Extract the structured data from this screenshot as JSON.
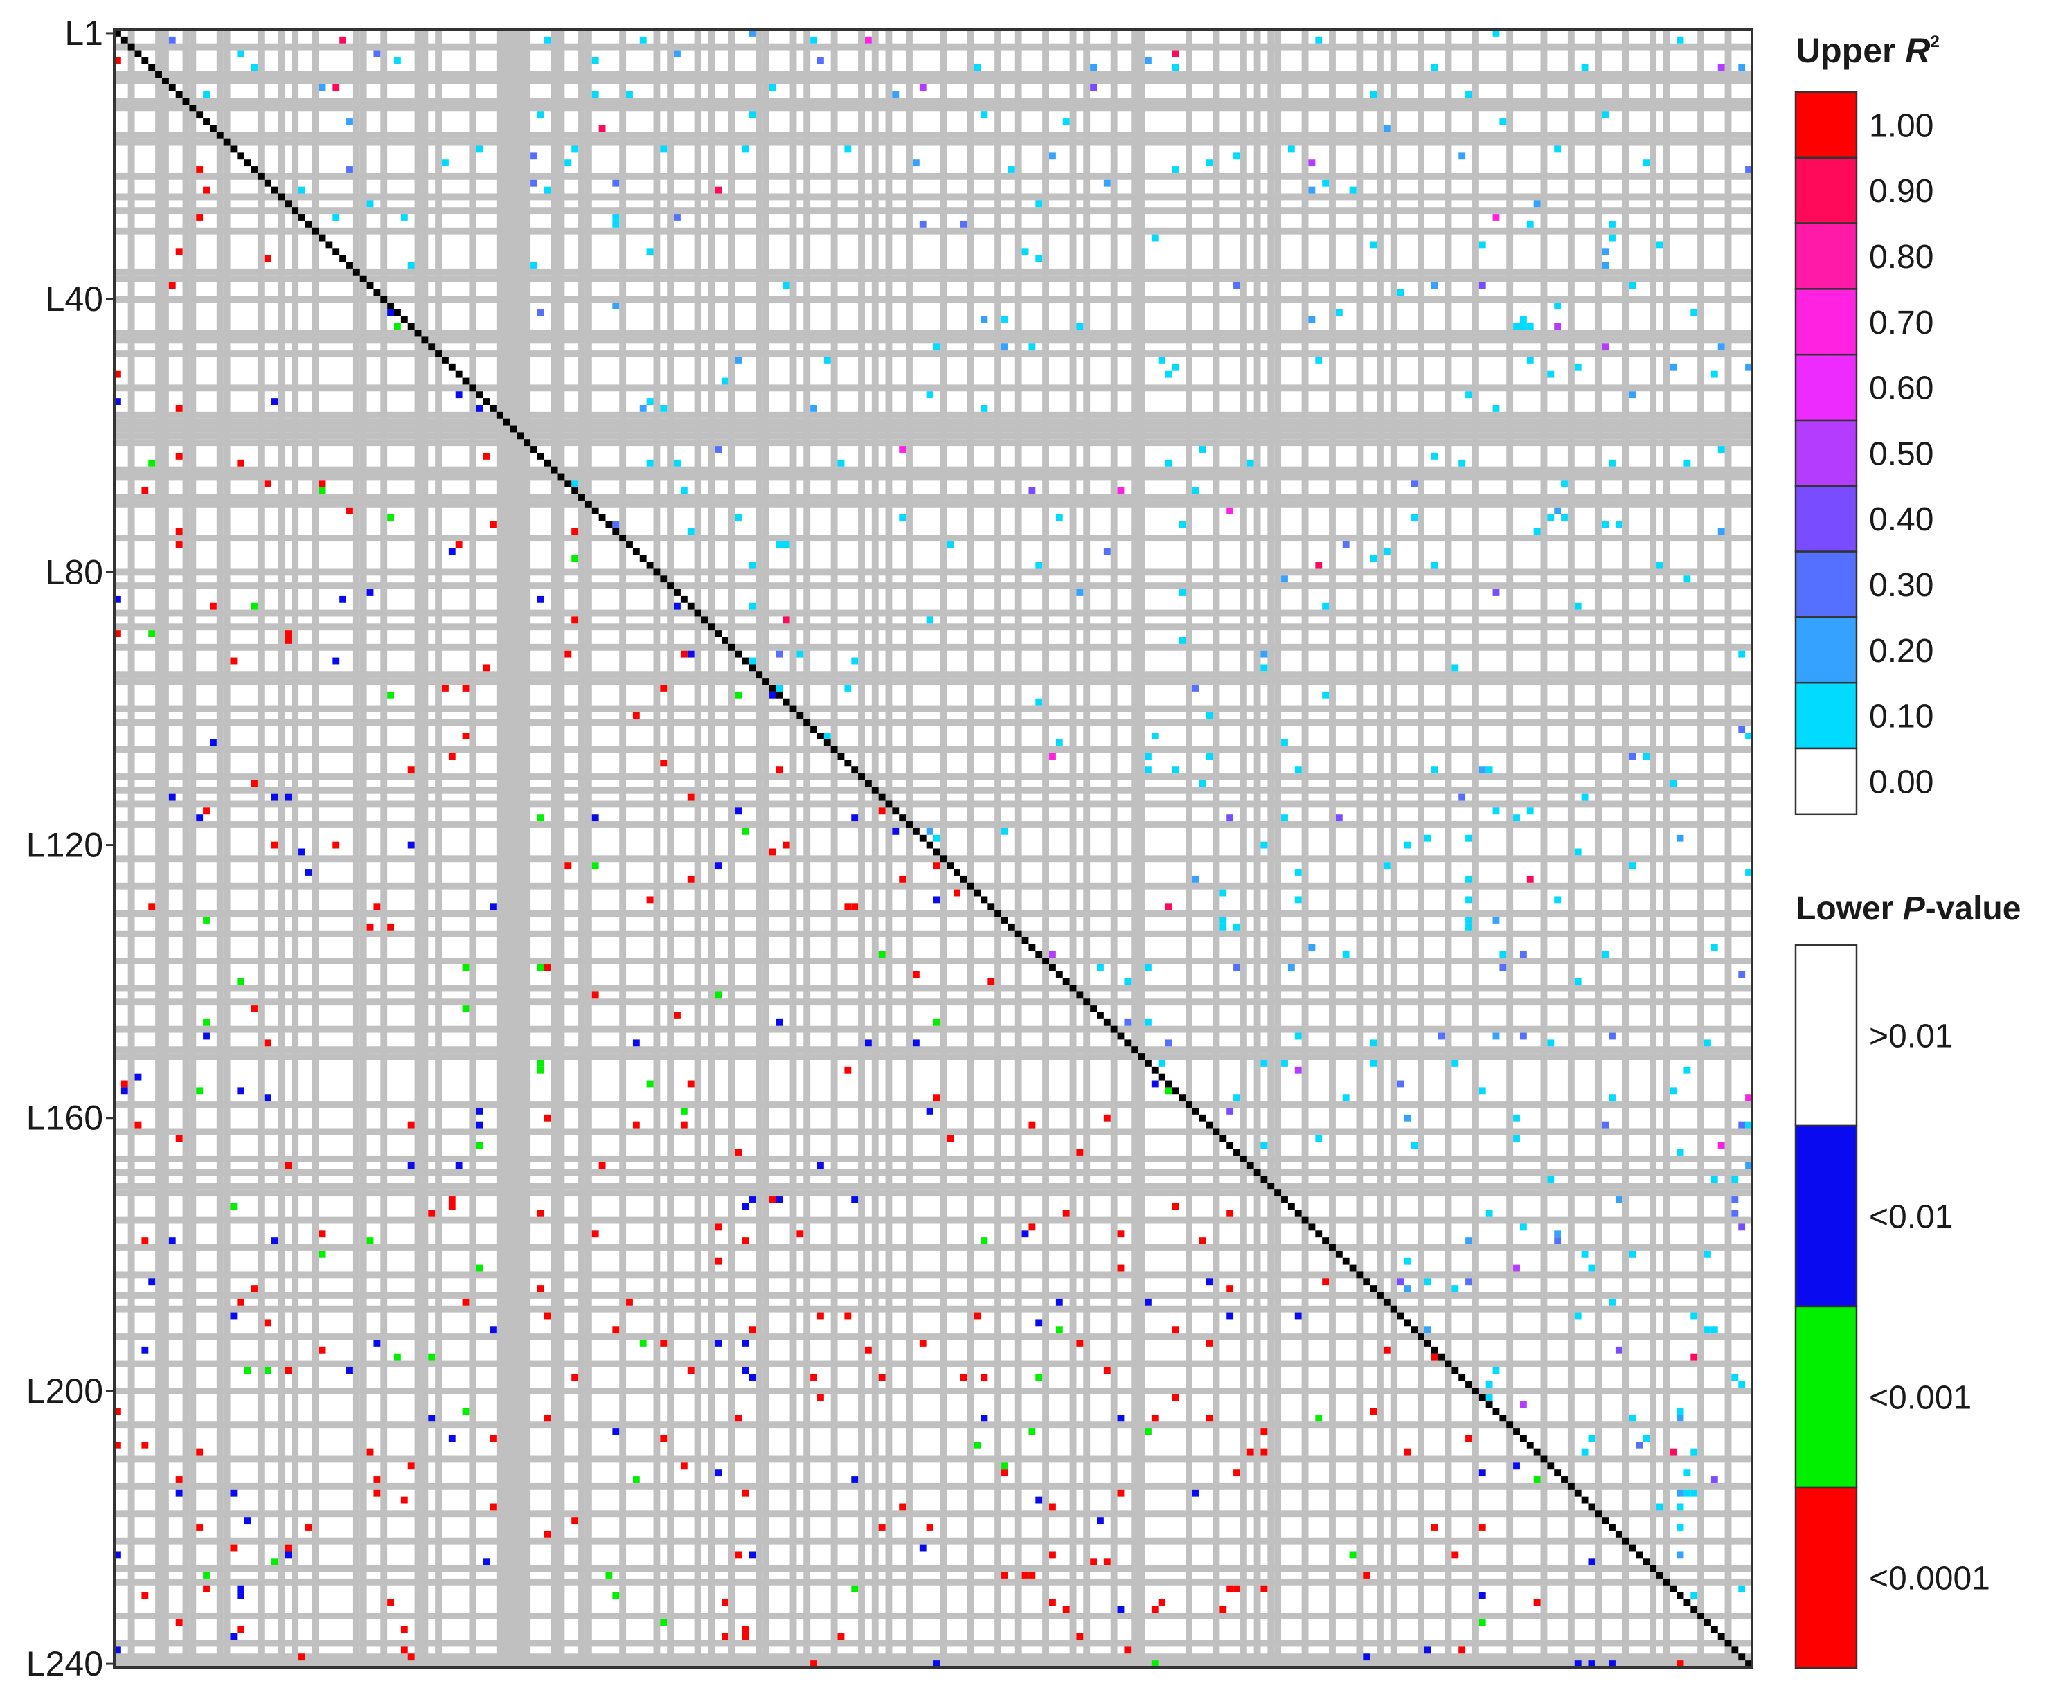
{
  "chart_data": {
    "type": "heatmap",
    "title": "",
    "matrix_size": 240,
    "y_tick_labels": [
      "L1",
      "L40",
      "L80",
      "L120",
      "L160",
      "L200",
      "L240"
    ],
    "y_tick_positions": [
      1,
      40,
      80,
      120,
      160,
      200,
      240
    ],
    "grid": "gray bands mark missing markers; diagonal drawn in black",
    "upper_triangle": "R-squared (LD), binned in 0.10 steps",
    "lower_triangle": "P-value significance, 4 classes",
    "legend_upper": {
      "title_prefix": "Upper ",
      "title_symbol": "R",
      "title_superscript": "2",
      "labels": [
        "1.00",
        "0.90",
        "0.80",
        "0.70",
        "0.60",
        "0.50",
        "0.40",
        "0.30",
        "0.20",
        "0.10",
        "0.00"
      ],
      "colors": [
        "#ff0000",
        "#ff0a5a",
        "#ff1aa8",
        "#ff22e0",
        "#ee2bff",
        "#b43cff",
        "#7a4cff",
        "#5570ff",
        "#35a2ff",
        "#00dbff",
        "#ffffff"
      ]
    },
    "legend_lower": {
      "title_prefix": "Lower ",
      "title_symbol": "P",
      "title_suffix": "-value",
      "labels": [
        ">0.01",
        "<0.01",
        "<0.001",
        "<0.0001"
      ],
      "colors": [
        "#ffffff",
        "#0a0af0",
        "#00f000",
        "#ff0000"
      ]
    },
    "missing_marker_bands": [
      3,
      7,
      8,
      11,
      12,
      16,
      17,
      22,
      25,
      27,
      30,
      36,
      37,
      40,
      45,
      46,
      48,
      53,
      57,
      58,
      59,
      60,
      61,
      65,
      66,
      69,
      70,
      75,
      80,
      82,
      86,
      88,
      91,
      95,
      96,
      100,
      102,
      106,
      110,
      112,
      114,
      117,
      122,
      126,
      130,
      133,
      137,
      141,
      143,
      147,
      150,
      151,
      158,
      162,
      166,
      168,
      170,
      171,
      175,
      179,
      183,
      186,
      188,
      192,
      196,
      200,
      205,
      210,
      214,
      218,
      222,
      226,
      228,
      233,
      237
    ],
    "cell_summary": {
      "upper_dominant": [
        "0.10",
        "0.20",
        "0.30"
      ],
      "lower_dominant": [
        "<0.0001",
        "<0.01",
        "<0.001"
      ],
      "cell_density": 0.028,
      "seed": 7
    }
  }
}
